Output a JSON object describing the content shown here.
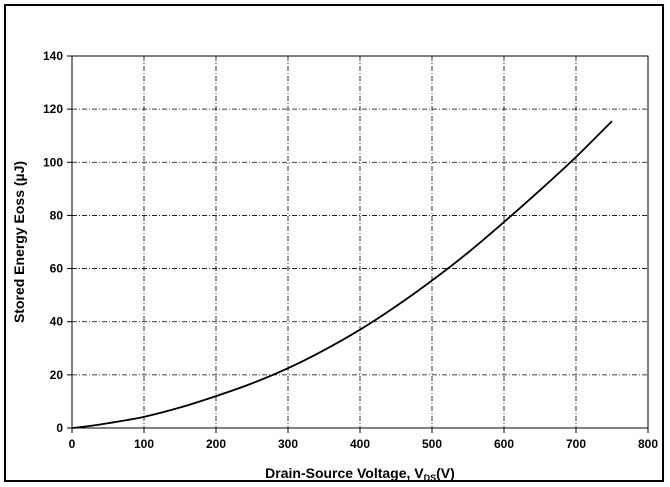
{
  "chart_data": {
    "type": "line",
    "title": "",
    "xlabel": "Drain-Source Voltage, ",
    "xlabel_symbol": "V",
    "xlabel_subscript": "DS",
    "xlabel_unit": "(V)",
    "ylabel": "Stored Energy Eoss (µJ)",
    "xlim": [
      0,
      800
    ],
    "ylim": [
      0,
      140
    ],
    "xticks": [
      0,
      100,
      200,
      300,
      400,
      500,
      600,
      700,
      800
    ],
    "yticks": [
      0,
      20,
      40,
      60,
      80,
      100,
      120,
      140
    ],
    "grid": true,
    "legend": "none",
    "line_color": "#000000",
    "series": [
      {
        "x": [
          0,
          20,
          50,
          100,
          150,
          200,
          250,
          300,
          350,
          400,
          450,
          500,
          550,
          600,
          650,
          700,
          750
        ],
        "values": [
          0,
          0.6,
          1.8,
          4.2,
          7.7,
          12,
          16.8,
          22.5,
          29.3,
          37,
          45.8,
          55.5,
          66,
          77.5,
          89.5,
          102,
          115.5
        ]
      }
    ]
  }
}
